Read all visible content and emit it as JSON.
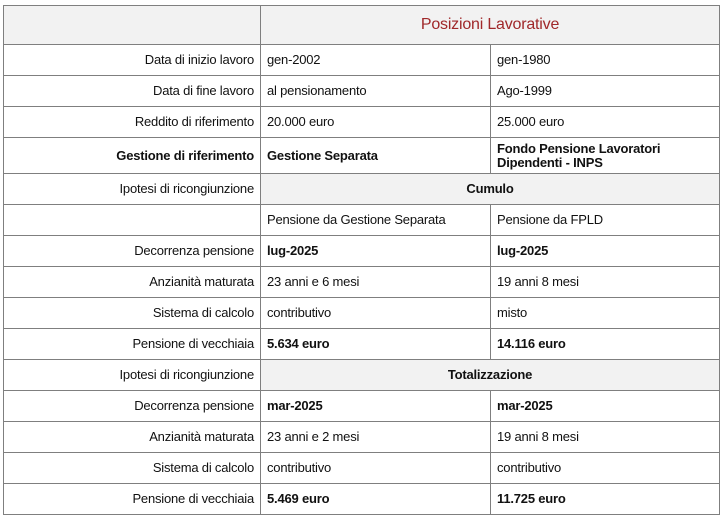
{
  "header": {
    "title": "Posizioni Lavorative",
    "title_color": "#a0282a"
  },
  "rows_top": [
    {
      "label": "Data di inizio lavoro",
      "a": "gen-2002",
      "b": "gen-1980"
    },
    {
      "label": "Data di fine lavoro",
      "a": "al pensionamento",
      "b": "Ago-1999"
    },
    {
      "label": "Reddito di riferimento",
      "a": "20.000 euro",
      "b": "25.000 euro"
    }
  ],
  "gestione": {
    "label": "Gestione di riferimento",
    "a": "Gestione Separata",
    "b1": "Fondo Pensione Lavoratori",
    "b2": "Dipendenti - INPS"
  },
  "cumulo": {
    "label": "Ipotesi di ricongiunzione",
    "title": "Cumulo",
    "sub_a": "Pensione da Gestione Separata",
    "sub_b": "Pensione da FPLD",
    "rows": [
      {
        "label": "Decorrenza pensione",
        "a": "lug-2025",
        "b": "lug-2025",
        "bold": true
      },
      {
        "label": "Anzianità maturata",
        "a": "23 anni e 6 mesi",
        "b": "19 anni 8 mesi",
        "bold": false
      },
      {
        "label": "Sistema di calcolo",
        "a": "contributivo",
        "b": "misto",
        "bold": false
      },
      {
        "label": "Pensione di vecchiaia",
        "a": "5.634 euro",
        "b": "14.116 euro",
        "bold": true
      }
    ]
  },
  "totalizzazione": {
    "label": "Ipotesi di ricongiunzione",
    "title": "Totalizzazione",
    "rows": [
      {
        "label": "Decorrenza pensione",
        "a": "mar-2025",
        "b": "mar-2025",
        "bold": true
      },
      {
        "label": "Anzianità maturata",
        "a": "23 anni e 2 mesi",
        "b": "19 anni 8 mesi",
        "bold": false
      },
      {
        "label": "Sistema di calcolo",
        "a": "contributivo",
        "b": "contributivo",
        "bold": false
      },
      {
        "label": "Pensione di vecchiaia",
        "a": "5.469 euro",
        "b": "11.725 euro",
        "bold": true
      }
    ]
  }
}
